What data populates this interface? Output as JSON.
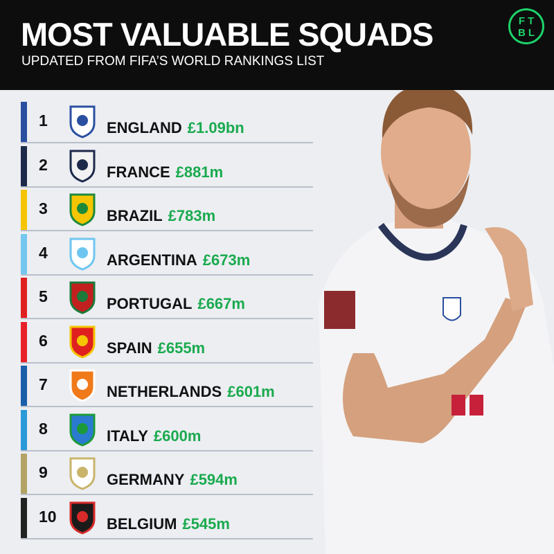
{
  "header": {
    "title": "MOST VALUABLE SQUADS",
    "subtitle": "UPDATED FROM FIFA’S WORLD RANKINGS LIST",
    "logo": [
      "FT",
      "BL"
    ]
  },
  "rows": [
    {
      "rank": "1",
      "team": "ENGLAND",
      "value": "£1.09bn"
    },
    {
      "rank": "2",
      "team": "FRANCE",
      "value": "£881m"
    },
    {
      "rank": "3",
      "team": "BRAZIL",
      "value": "£783m"
    },
    {
      "rank": "4",
      "team": "ARGENTINA",
      "value": "£673m"
    },
    {
      "rank": "5",
      "team": "PORTUGAL",
      "value": "£667m"
    },
    {
      "rank": "6",
      "team": "SPAIN",
      "value": "£655m"
    },
    {
      "rank": "7",
      "team": "NETHERLANDS",
      "value": "£601m"
    },
    {
      "rank": "8",
      "team": "ITALY",
      "value": "£600m"
    },
    {
      "rank": "9",
      "team": "GERMANY",
      "value": "£594m"
    },
    {
      "rank": "10",
      "team": "BELGIUM",
      "value": "£545m"
    }
  ]
}
